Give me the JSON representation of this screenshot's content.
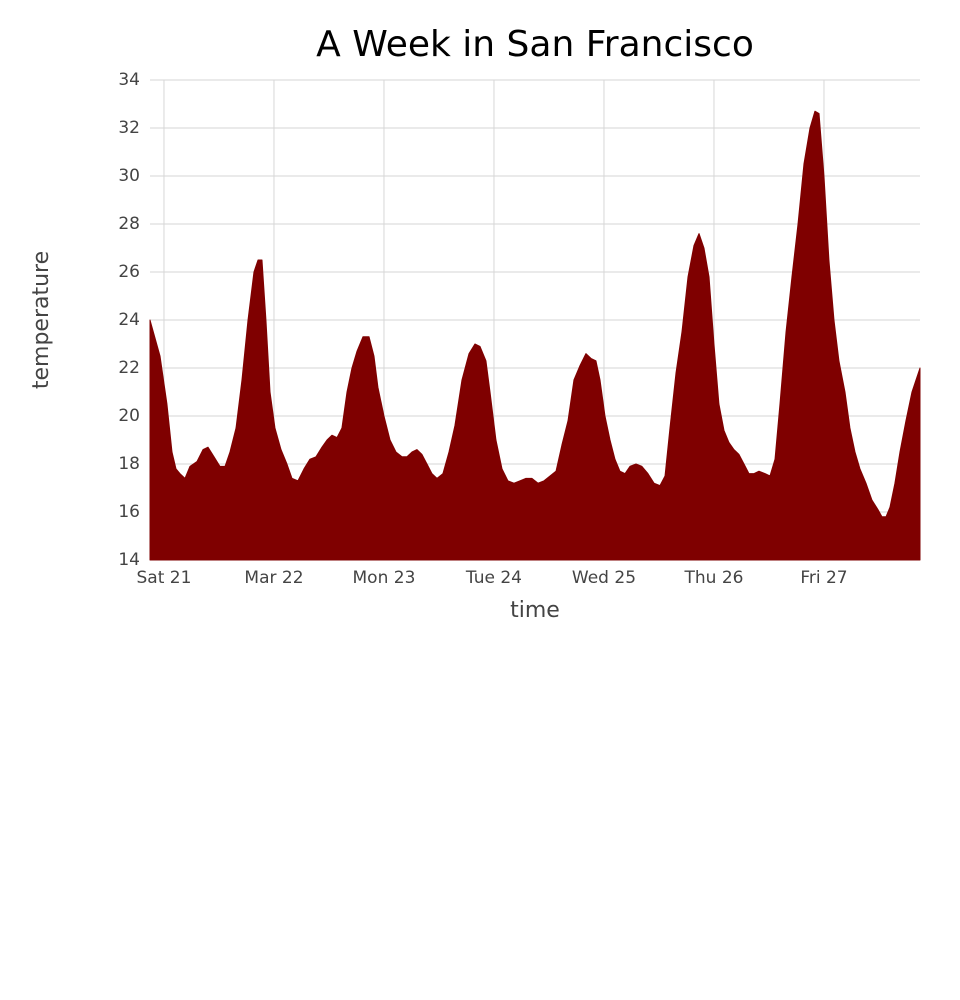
{
  "chart_data": {
    "type": "area",
    "title": "A Week in San Francisco",
    "x_label": "time",
    "y_label": "temperature",
    "color": "#7f0000",
    "grid": true,
    "xlim": [
      20.873,
      27.873
    ],
    "ylim": [
      14,
      34
    ],
    "xticks": [
      {
        "value": 21,
        "label": "Sat 21"
      },
      {
        "value": 22,
        "label": "Mar 22"
      },
      {
        "value": 23,
        "label": "Mon 23"
      },
      {
        "value": 24,
        "label": "Tue 24"
      },
      {
        "value": 25,
        "label": "Wed 25"
      },
      {
        "value": 26,
        "label": "Thu 26"
      },
      {
        "value": 27,
        "label": "Fri 27"
      }
    ],
    "yticks": [
      14,
      16,
      18,
      20,
      22,
      24,
      26,
      28,
      30,
      32,
      34
    ],
    "x": [
      20.873,
      20.964,
      21.027,
      21.073,
      21.109,
      21.145,
      21.191,
      21.236,
      21.3,
      21.355,
      21.4,
      21.455,
      21.509,
      21.555,
      21.6,
      21.655,
      21.709,
      21.764,
      21.818,
      21.855,
      21.891,
      21.927,
      21.964,
      22.009,
      22.064,
      22.118,
      22.164,
      22.218,
      22.273,
      22.327,
      22.382,
      22.436,
      22.482,
      22.527,
      22.573,
      22.618,
      22.664,
      22.709,
      22.755,
      22.809,
      22.864,
      22.909,
      22.945,
      23.0,
      23.055,
      23.109,
      23.164,
      23.209,
      23.255,
      23.3,
      23.345,
      23.391,
      23.436,
      23.482,
      23.536,
      23.591,
      23.645,
      23.709,
      23.773,
      23.827,
      23.873,
      23.927,
      23.964,
      24.018,
      24.073,
      24.127,
      24.182,
      24.236,
      24.291,
      24.345,
      24.4,
      24.455,
      24.509,
      24.564,
      24.618,
      24.673,
      24.727,
      24.782,
      24.836,
      24.882,
      24.927,
      24.964,
      25.009,
      25.055,
      25.1,
      25.145,
      25.191,
      25.236,
      25.291,
      25.345,
      25.4,
      25.455,
      25.509,
      25.555,
      25.6,
      25.655,
      25.709,
      25.764,
      25.818,
      25.864,
      25.909,
      25.955,
      26.0,
      26.045,
      26.091,
      26.136,
      26.182,
      26.227,
      26.273,
      26.318,
      26.364,
      26.409,
      26.464,
      26.509,
      26.555,
      26.6,
      26.655,
      26.709,
      26.764,
      26.818,
      26.873,
      26.918,
      26.955,
      27.0,
      27.045,
      27.091,
      27.136,
      27.191,
      27.236,
      27.282,
      27.327,
      27.382,
      27.436,
      27.491,
      27.527,
      27.564,
      27.6,
      27.645,
      27.691,
      27.745,
      27.8,
      27.873
    ],
    "values": [
      24.0,
      22.5,
      20.5,
      18.5,
      17.8,
      17.6,
      17.4,
      17.9,
      18.1,
      18.6,
      18.7,
      18.3,
      17.9,
      17.9,
      18.5,
      19.5,
      21.5,
      24,
      26,
      26.5,
      26.5,
      24,
      21,
      19.5,
      18.6,
      18.0,
      17.4,
      17.3,
      17.8,
      18.2,
      18.3,
      18.7,
      19.0,
      19.2,
      19.1,
      19.5,
      21,
      22,
      22.7,
      23.3,
      23.3,
      22.5,
      21.2,
      20,
      19,
      18.5,
      18.3,
      18.3,
      18.5,
      18.6,
      18.4,
      18.0,
      17.6,
      17.4,
      17.6,
      18.5,
      19.6,
      21.5,
      22.6,
      23.0,
      22.9,
      22.3,
      21,
      19,
      17.8,
      17.3,
      17.2,
      17.3,
      17.4,
      17.4,
      17.2,
      17.3,
      17.5,
      17.7,
      18.8,
      19.8,
      21.5,
      22.1,
      22.6,
      22.4,
      22.3,
      21.5,
      20,
      19,
      18.2,
      17.7,
      17.6,
      17.9,
      18.0,
      17.9,
      17.6,
      17.2,
      17.1,
      17.5,
      19.5,
      21.8,
      23.5,
      25.8,
      27.1,
      27.6,
      27,
      25.8,
      23,
      20.5,
      19.4,
      18.9,
      18.6,
      18.4,
      18.0,
      17.6,
      17.6,
      17.7,
      17.6,
      17.5,
      18.2,
      20.5,
      23.5,
      25.8,
      28,
      30.5,
      32,
      32.7,
      32.6,
      30,
      26.5,
      24,
      22.3,
      21,
      19.5,
      18.5,
      17.8,
      17.2,
      16.5,
      16.1,
      15.8,
      15.8,
      16.2,
      17.2,
      18.5,
      19.8,
      21,
      22
    ]
  }
}
